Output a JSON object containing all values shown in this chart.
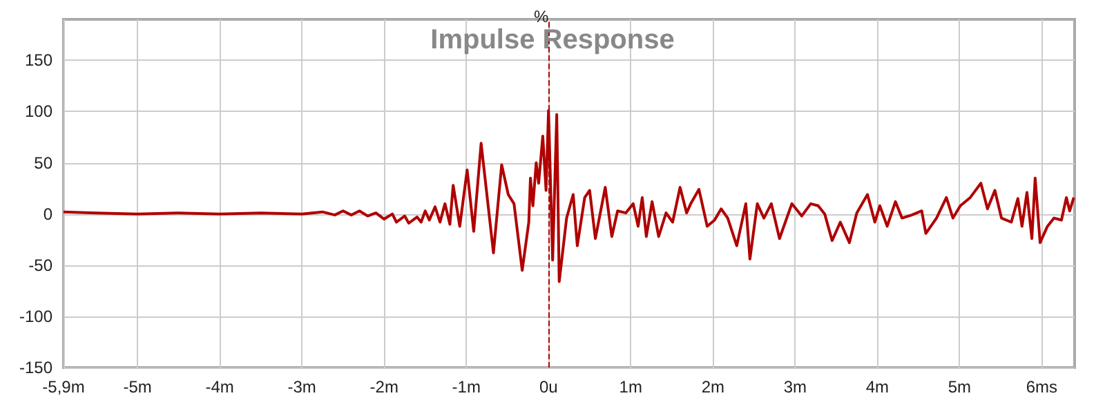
{
  "chart_data": {
    "type": "line",
    "title": "Impulse Response",
    "ylabel": "%",
    "xlim": [
      -5.9,
      6.4
    ],
    "ylim": [
      -150,
      190
    ],
    "xticks": [
      {
        "value": -5.9,
        "label": "-5,9m"
      },
      {
        "value": -5,
        "label": "-5m"
      },
      {
        "value": -4,
        "label": "-4m"
      },
      {
        "value": -3,
        "label": "-3m"
      },
      {
        "value": -2,
        "label": "-2m"
      },
      {
        "value": -1,
        "label": "-1m"
      },
      {
        "value": 0,
        "label": "0u"
      },
      {
        "value": 1,
        "label": "1m"
      },
      {
        "value": 2,
        "label": "2m"
      },
      {
        "value": 3,
        "label": "3m"
      },
      {
        "value": 4,
        "label": "4m"
      },
      {
        "value": 5,
        "label": "5m"
      },
      {
        "value": 6,
        "label": "6ms"
      }
    ],
    "yticks": [
      -150,
      -100,
      -50,
      0,
      50,
      100,
      150
    ],
    "grid": true,
    "marker": "none",
    "line_style": "solid",
    "ref_lines": [
      {
        "axis": "x",
        "value": 0,
        "color": "#b00000",
        "line_style": "dashed"
      }
    ],
    "series": [
      {
        "color": "#b00000",
        "x": [
          -5.9,
          -5.5,
          -5,
          -4.5,
          -4,
          -3.5,
          -3,
          -2.75,
          -2.6,
          -2.5,
          -2.4,
          -2.3,
          -2.2,
          -2.1,
          -2,
          -1.9,
          -1.85,
          -1.75,
          -1.7,
          -1.6,
          -1.55,
          -1.5,
          -1.45,
          -1.38,
          -1.32,
          -1.26,
          -1.2,
          -1.16,
          -1.08,
          -0.99,
          -0.91,
          -0.82,
          -0.67,
          -0.57,
          -0.49,
          -0.42,
          -0.32,
          -0.24,
          -0.22,
          -0.19,
          -0.15,
          -0.12,
          -0.07,
          -0.03,
          0,
          0.05,
          0.1,
          0.13,
          0.22,
          0.3,
          0.35,
          0.44,
          0.5,
          0.57,
          0.69,
          0.77,
          0.84,
          0.94,
          1.03,
          1.09,
          1.14,
          1.19,
          1.26,
          1.34,
          1.43,
          1.51,
          1.6,
          1.68,
          1.73,
          1.83,
          1.93,
          2.02,
          2.1,
          2.18,
          2.29,
          2.4,
          2.45,
          2.54,
          2.62,
          2.71,
          2.81,
          2.96,
          3.08,
          3.19,
          3.28,
          3.36,
          3.45,
          3.55,
          3.66,
          3.75,
          3.88,
          3.97,
          4.03,
          4.12,
          4.22,
          4.3,
          4.42,
          4.54,
          4.59,
          4.72,
          4.84,
          4.92,
          5.01,
          5.13,
          5.26,
          5.34,
          5.43,
          5.51,
          5.63,
          5.71,
          5.76,
          5.82,
          5.88,
          5.92,
          5.98,
          6.07,
          6.15,
          6.24,
          6.3,
          6.34,
          6.39
        ],
        "values": [
          2,
          1,
          0,
          1,
          0,
          1,
          0,
          2,
          -1,
          3,
          -1,
          3,
          -2,
          1,
          -5,
          0,
          -8,
          -2,
          -9,
          -3,
          -8,
          3,
          -6,
          7,
          -8,
          10,
          -10,
          28,
          -12,
          43,
          -17,
          69,
          -38,
          48,
          19,
          10,
          -55,
          -8,
          35,
          8,
          50,
          30,
          76,
          23,
          101,
          -45,
          97,
          -66,
          -4,
          19,
          -31,
          16,
          23,
          -24,
          26,
          -22,
          3,
          1,
          10,
          -12,
          16,
          -22,
          12,
          -22,
          1,
          -8,
          26,
          1,
          10,
          24,
          -12,
          -6,
          5,
          -4,
          -31,
          10,
          -44,
          10,
          -4,
          10,
          -24,
          10,
          -2,
          10,
          8,
          0,
          -26,
          -8,
          -28,
          1,
          19,
          -8,
          8,
          -12,
          12,
          -4,
          -1,
          3,
          -19,
          -4,
          16,
          -4,
          8,
          16,
          30,
          5,
          23,
          -4,
          -8,
          15,
          -12,
          21,
          -24,
          35,
          -28,
          -12,
          -4,
          -6,
          16,
          3,
          16
        ]
      }
    ]
  }
}
